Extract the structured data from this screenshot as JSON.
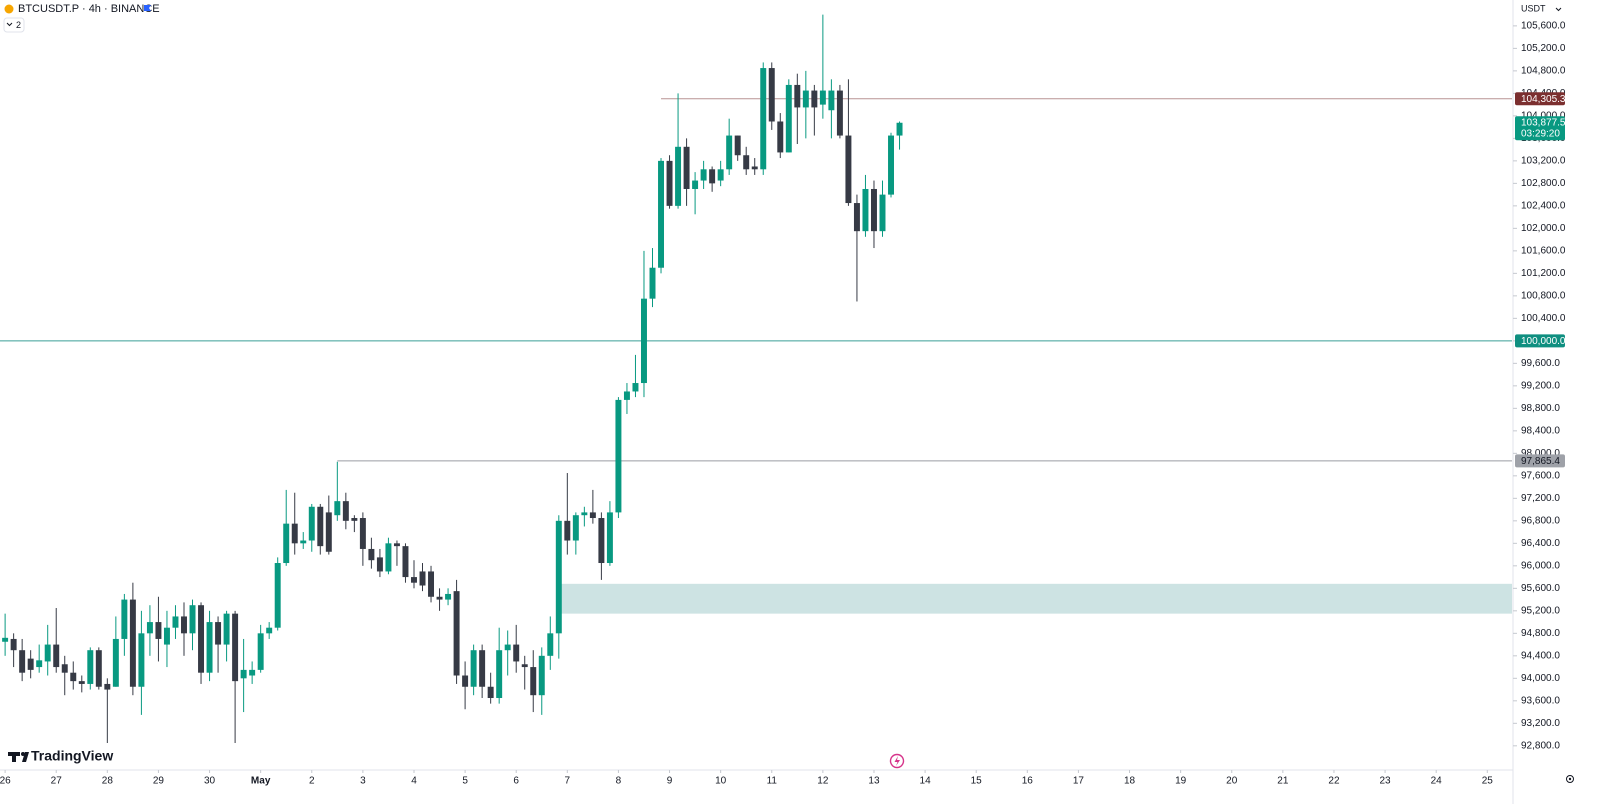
{
  "chart_data": {
    "type": "candlestick",
    "symbol": "BTCUSDT.P · 4h · BINANCE",
    "indicator_count": "2",
    "currency": "USDT",
    "brand": "TradingView",
    "up_color": "#089981",
    "down_color": "#363a45",
    "candles": [
      {
        "o": 94650,
        "h": 95150,
        "l": 94400,
        "c": 94720
      },
      {
        "o": 94700,
        "h": 94800,
        "l": 94200,
        "c": 94500
      },
      {
        "o": 94500,
        "h": 94700,
        "l": 93950,
        "c": 94100
      },
      {
        "o": 94350,
        "h": 94500,
        "l": 94000,
        "c": 94150
      },
      {
        "o": 94200,
        "h": 94600,
        "l": 94100,
        "c": 94320
      },
      {
        "o": 94300,
        "h": 94950,
        "l": 94050,
        "c": 94600
      },
      {
        "o": 94600,
        "h": 95250,
        "l": 94100,
        "c": 94200
      },
      {
        "o": 94250,
        "h": 94400,
        "l": 93700,
        "c": 94100
      },
      {
        "o": 94100,
        "h": 94300,
        "l": 93800,
        "c": 93950
      },
      {
        "o": 93950,
        "h": 94050,
        "l": 93750,
        "c": 93900
      },
      {
        "o": 93900,
        "h": 94550,
        "l": 93800,
        "c": 94500
      },
      {
        "o": 94500,
        "h": 94550,
        "l": 93800,
        "c": 93850
      },
      {
        "o": 93900,
        "h": 94000,
        "l": 92850,
        "c": 93800
      },
      {
        "o": 93850,
        "h": 95100,
        "l": 93850,
        "c": 94700
      },
      {
        "o": 94700,
        "h": 95500,
        "l": 94400,
        "c": 95400
      },
      {
        "o": 95400,
        "h": 95700,
        "l": 93700,
        "c": 93850
      },
      {
        "o": 93850,
        "h": 95200,
        "l": 93350,
        "c": 94800
      },
      {
        "o": 94800,
        "h": 95300,
        "l": 94400,
        "c": 95000
      },
      {
        "o": 95000,
        "h": 95450,
        "l": 94300,
        "c": 94700
      },
      {
        "o": 94600,
        "h": 95200,
        "l": 94200,
        "c": 94900
      },
      {
        "o": 94900,
        "h": 95300,
        "l": 94700,
        "c": 95100
      },
      {
        "o": 95100,
        "h": 95350,
        "l": 94400,
        "c": 94800
      },
      {
        "o": 94800,
        "h": 95400,
        "l": 94500,
        "c": 95300
      },
      {
        "o": 95300,
        "h": 95350,
        "l": 93900,
        "c": 94100
      },
      {
        "o": 94100,
        "h": 95200,
        "l": 93950,
        "c": 95000
      },
      {
        "o": 95000,
        "h": 95100,
        "l": 94100,
        "c": 94600
      },
      {
        "o": 94600,
        "h": 95200,
        "l": 94300,
        "c": 95150
      },
      {
        "o": 95150,
        "h": 95200,
        "l": 92850,
        "c": 93950
      },
      {
        "o": 94000,
        "h": 94700,
        "l": 93400,
        "c": 94150
      },
      {
        "o": 94050,
        "h": 94300,
        "l": 93900,
        "c": 94150
      },
      {
        "o": 94150,
        "h": 94950,
        "l": 94100,
        "c": 94800
      },
      {
        "o": 94800,
        "h": 95000,
        "l": 94700,
        "c": 94900
      },
      {
        "o": 94900,
        "h": 96150,
        "l": 94850,
        "c": 96050
      },
      {
        "o": 96050,
        "h": 97350,
        "l": 96000,
        "c": 96750
      },
      {
        "o": 96750,
        "h": 97300,
        "l": 96200,
        "c": 96400
      },
      {
        "o": 96400,
        "h": 96600,
        "l": 96300,
        "c": 96450
      },
      {
        "o": 96450,
        "h": 97100,
        "l": 96250,
        "c": 97050
      },
      {
        "o": 97050,
        "h": 97100,
        "l": 96200,
        "c": 96350
      },
      {
        "o": 96950,
        "h": 97250,
        "l": 96200,
        "c": 96250
      },
      {
        "o": 96900,
        "h": 97850,
        "l": 96800,
        "c": 97150
      },
      {
        "o": 97150,
        "h": 97300,
        "l": 96650,
        "c": 96800
      },
      {
        "o": 96850,
        "h": 96900,
        "l": 96600,
        "c": 96800
      },
      {
        "o": 96850,
        "h": 96950,
        "l": 96000,
        "c": 96300
      },
      {
        "o": 96300,
        "h": 96500,
        "l": 95950,
        "c": 96100
      },
      {
        "o": 96150,
        "h": 96300,
        "l": 95800,
        "c": 95900
      },
      {
        "o": 95900,
        "h": 96500,
        "l": 95850,
        "c": 96400
      },
      {
        "o": 96400,
        "h": 96450,
        "l": 96000,
        "c": 96350
      },
      {
        "o": 96350,
        "h": 96400,
        "l": 95700,
        "c": 95800
      },
      {
        "o": 95800,
        "h": 96100,
        "l": 95600,
        "c": 95700
      },
      {
        "o": 95900,
        "h": 96050,
        "l": 95550,
        "c": 95650
      },
      {
        "o": 95900,
        "h": 96000,
        "l": 95350,
        "c": 95450
      },
      {
        "o": 95450,
        "h": 95600,
        "l": 95200,
        "c": 95400
      },
      {
        "o": 95400,
        "h": 95600,
        "l": 95300,
        "c": 95500
      },
      {
        "o": 95550,
        "h": 95750,
        "l": 93900,
        "c": 94050
      },
      {
        "o": 94050,
        "h": 94300,
        "l": 93450,
        "c": 93850
      },
      {
        "o": 93850,
        "h": 94600,
        "l": 93700,
        "c": 94500
      },
      {
        "o": 94500,
        "h": 94600,
        "l": 93650,
        "c": 93850
      },
      {
        "o": 93850,
        "h": 94100,
        "l": 93550,
        "c": 93650
      },
      {
        "o": 93650,
        "h": 94900,
        "l": 93550,
        "c": 94500
      },
      {
        "o": 94500,
        "h": 94850,
        "l": 94050,
        "c": 94600
      },
      {
        "o": 94600,
        "h": 94950,
        "l": 94100,
        "c": 94300
      },
      {
        "o": 94250,
        "h": 94400,
        "l": 93800,
        "c": 94200
      },
      {
        "o": 94200,
        "h": 94500,
        "l": 93400,
        "c": 93700
      },
      {
        "o": 93700,
        "h": 94550,
        "l": 93350,
        "c": 94400
      },
      {
        "o": 94400,
        "h": 95100,
        "l": 94150,
        "c": 94800
      },
      {
        "o": 94800,
        "h": 96900,
        "l": 94350,
        "c": 96800
      },
      {
        "o": 96800,
        "h": 97650,
        "l": 96200,
        "c": 96450
      },
      {
        "o": 96450,
        "h": 96950,
        "l": 96200,
        "c": 96900
      },
      {
        "o": 96900,
        "h": 97050,
        "l": 96700,
        "c": 96950
      },
      {
        "o": 96950,
        "h": 97350,
        "l": 96750,
        "c": 96850
      },
      {
        "o": 96850,
        "h": 96950,
        "l": 95750,
        "c": 96050
      },
      {
        "o": 96050,
        "h": 97150,
        "l": 96000,
        "c": 96950
      },
      {
        "o": 96950,
        "h": 99000,
        "l": 96850,
        "c": 98950
      },
      {
        "o": 98950,
        "h": 99250,
        "l": 98700,
        "c": 99100
      },
      {
        "o": 99100,
        "h": 99750,
        "l": 99000,
        "c": 99250
      },
      {
        "o": 99250,
        "h": 101600,
        "l": 99000,
        "c": 100750
      },
      {
        "o": 100750,
        "h": 101650,
        "l": 100600,
        "c": 101300
      },
      {
        "o": 101300,
        "h": 103250,
        "l": 101200,
        "c": 103200
      },
      {
        "o": 103200,
        "h": 103300,
        "l": 102350,
        "c": 102400
      },
      {
        "o": 102400,
        "h": 104400,
        "l": 102350,
        "c": 103450
      },
      {
        "o": 103450,
        "h": 103600,
        "l": 102400,
        "c": 102700
      },
      {
        "o": 102700,
        "h": 103000,
        "l": 102250,
        "c": 102850
      },
      {
        "o": 102850,
        "h": 103200,
        "l": 102700,
        "c": 103050
      },
      {
        "o": 103050,
        "h": 103100,
        "l": 102650,
        "c": 102800
      },
      {
        "o": 102850,
        "h": 103200,
        "l": 102750,
        "c": 103050
      },
      {
        "o": 103050,
        "h": 103950,
        "l": 102950,
        "c": 103650
      },
      {
        "o": 103650,
        "h": 103650,
        "l": 103200,
        "c": 103300
      },
      {
        "o": 103300,
        "h": 103450,
        "l": 102950,
        "c": 103050
      },
      {
        "o": 103100,
        "h": 103250,
        "l": 102950,
        "c": 103050
      },
      {
        "o": 103050,
        "h": 104950,
        "l": 102950,
        "c": 104850
      },
      {
        "o": 104850,
        "h": 104950,
        "l": 103750,
        "c": 103900
      },
      {
        "o": 103900,
        "h": 104050,
        "l": 103250,
        "c": 103350
      },
      {
        "o": 103350,
        "h": 104650,
        "l": 103350,
        "c": 104550
      },
      {
        "o": 104550,
        "h": 104750,
        "l": 103500,
        "c": 104150
      },
      {
        "o": 104150,
        "h": 104800,
        "l": 103600,
        "c": 104450
      },
      {
        "o": 104450,
        "h": 104550,
        "l": 103650,
        "c": 104150
      },
      {
        "o": 104200,
        "h": 105800,
        "l": 103950,
        "c": 104450
      },
      {
        "o": 104100,
        "h": 104650,
        "l": 103600,
        "c": 104450
      },
      {
        "o": 104450,
        "h": 104550,
        "l": 103600,
        "c": 103650
      },
      {
        "o": 103650,
        "h": 104650,
        "l": 102400,
        "c": 102450
      },
      {
        "o": 102450,
        "h": 102600,
        "l": 100700,
        "c": 101950
      },
      {
        "o": 101950,
        "h": 102950,
        "l": 101850,
        "c": 102700
      },
      {
        "o": 102700,
        "h": 102850,
        "l": 101650,
        "c": 101950
      },
      {
        "o": 101950,
        "h": 102850,
        "l": 101850,
        "c": 102600
      },
      {
        "o": 102600,
        "h": 103700,
        "l": 102550,
        "c": 103650
      },
      {
        "o": 103650,
        "h": 103900,
        "l": 103400,
        "c": 103877.5
      }
    ],
    "xlim": [
      -0.6,
      176.9
    ],
    "ylim": [
      92370,
      106060
    ],
    "xticks": [
      {
        "value": 0,
        "label": "26"
      },
      {
        "value": 6,
        "label": "27"
      },
      {
        "value": 12,
        "label": "28"
      },
      {
        "value": 18,
        "label": "29"
      },
      {
        "value": 24,
        "label": "30"
      },
      {
        "value": 30,
        "label": "May"
      },
      {
        "value": 36,
        "label": "2"
      },
      {
        "value": 42,
        "label": "3"
      },
      {
        "value": 48,
        "label": "4"
      },
      {
        "value": 54,
        "label": "5"
      },
      {
        "value": 60,
        "label": "6"
      },
      {
        "value": 66,
        "label": "7"
      },
      {
        "value": 72,
        "label": "8"
      },
      {
        "value": 78,
        "label": "9"
      },
      {
        "value": 84,
        "label": "10"
      },
      {
        "value": 90,
        "label": "11"
      },
      {
        "value": 96,
        "label": "12"
      },
      {
        "value": 102,
        "label": "13"
      },
      {
        "value": 108,
        "label": "14"
      },
      {
        "value": 114,
        "label": "15"
      },
      {
        "value": 120,
        "label": "16"
      },
      {
        "value": 126,
        "label": "17"
      },
      {
        "value": 132,
        "label": "18"
      },
      {
        "value": 138,
        "label": "19"
      },
      {
        "value": 144,
        "label": "20"
      },
      {
        "value": 150,
        "label": "21"
      },
      {
        "value": 156,
        "label": "22"
      },
      {
        "value": 162,
        "label": "23"
      },
      {
        "value": 168,
        "label": "24"
      },
      {
        "value": 174,
        "label": "25"
      }
    ],
    "yticks": [
      {
        "value": 92800,
        "label": "92,800.0"
      },
      {
        "value": 93200,
        "label": "93,200.0"
      },
      {
        "value": 93600,
        "label": "93,600.0"
      },
      {
        "value": 94000,
        "label": "94,000.0"
      },
      {
        "value": 94400,
        "label": "94,400.0"
      },
      {
        "value": 94800,
        "label": "94,800.0"
      },
      {
        "value": 95200,
        "label": "95,200.0"
      },
      {
        "value": 95600,
        "label": "95,600.0"
      },
      {
        "value": 96000,
        "label": "96,000.0"
      },
      {
        "value": 96400,
        "label": "96,400.0"
      },
      {
        "value": 96800,
        "label": "96,800.0"
      },
      {
        "value": 97200,
        "label": "97,200.0"
      },
      {
        "value": 97600,
        "label": "97,600.0"
      },
      {
        "value": 98000,
        "label": "98,000.0"
      },
      {
        "value": 98400,
        "label": "98,400.0"
      },
      {
        "value": 98800,
        "label": "98,800.0"
      },
      {
        "value": 99200,
        "label": "99,200.0"
      },
      {
        "value": 99600,
        "label": "99,600.0"
      },
      {
        "value": 100000,
        "label": "100,000.0"
      },
      {
        "value": 100400,
        "label": "100,400.0"
      },
      {
        "value": 100800,
        "label": "100,800.0"
      },
      {
        "value": 101200,
        "label": "101,200.0"
      },
      {
        "value": 101600,
        "label": "101,600.0"
      },
      {
        "value": 102000,
        "label": "102,000.0"
      },
      {
        "value": 102400,
        "label": "102,400.0"
      },
      {
        "value": 102800,
        "label": "102,800.0"
      },
      {
        "value": 103200,
        "label": "103,200.0"
      },
      {
        "value": 103600,
        "label": "103,600.0"
      },
      {
        "value": 104000,
        "label": "104,000.0"
      },
      {
        "value": 104400,
        "label": "104,400.0"
      },
      {
        "value": 104800,
        "label": "104,800.0"
      },
      {
        "value": 105200,
        "label": "105,200.0"
      },
      {
        "value": 105600,
        "label": "105,600.0"
      }
    ],
    "zone": {
      "top": 95680,
      "bottom": 95150,
      "from": 65.3,
      "color": "#cde3e3"
    },
    "levels": [
      {
        "value": 104305.3,
        "label": "104,305.3",
        "from": 77,
        "line_color": "#b89494",
        "label_color": "#7b2f2f",
        "text_color": "#ffffff"
      },
      {
        "value": 100000,
        "label": "100,000.0",
        "line_color": "#3a9f97",
        "label_color": "#0f8f80",
        "text_color": "#ffffff"
      },
      {
        "value": 97865.4,
        "label": "97,865.4",
        "from": 39,
        "line_color": "#9a9ca3",
        "label_color": "#9ea1a8",
        "text_color": "#131722"
      }
    ],
    "last_price": {
      "value": 103877.5,
      "label": "103,877.5",
      "countdown": "03:29:20",
      "color": "#089981"
    }
  }
}
